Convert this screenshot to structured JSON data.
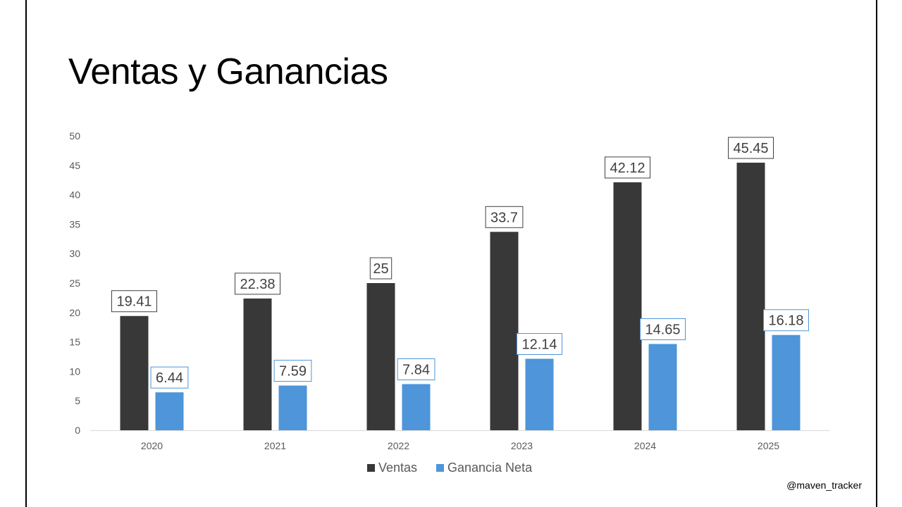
{
  "slide": {
    "handle": "@maven_tracker"
  },
  "chart_data": {
    "type": "bar",
    "title": "Ventas y Ganancias",
    "categories": [
      "2020",
      "2021",
      "2022",
      "2023",
      "2024",
      "2025"
    ],
    "series": [
      {
        "name": "Ventas",
        "color": "#383838",
        "values": [
          19.41,
          22.38,
          25,
          33.7,
          42.12,
          45.45
        ]
      },
      {
        "name": "Ganancia Neta",
        "color": "#4E95D9",
        "values": [
          6.44,
          7.59,
          7.84,
          12.14,
          14.65,
          16.18
        ]
      }
    ],
    "ylim": [
      0,
      50
    ],
    "yticks": [
      0,
      5,
      10,
      15,
      20,
      25,
      30,
      35,
      40,
      45,
      50
    ],
    "xlabel": "",
    "ylabel": "",
    "grid": false,
    "legend": "bottom",
    "data_labels": true
  }
}
